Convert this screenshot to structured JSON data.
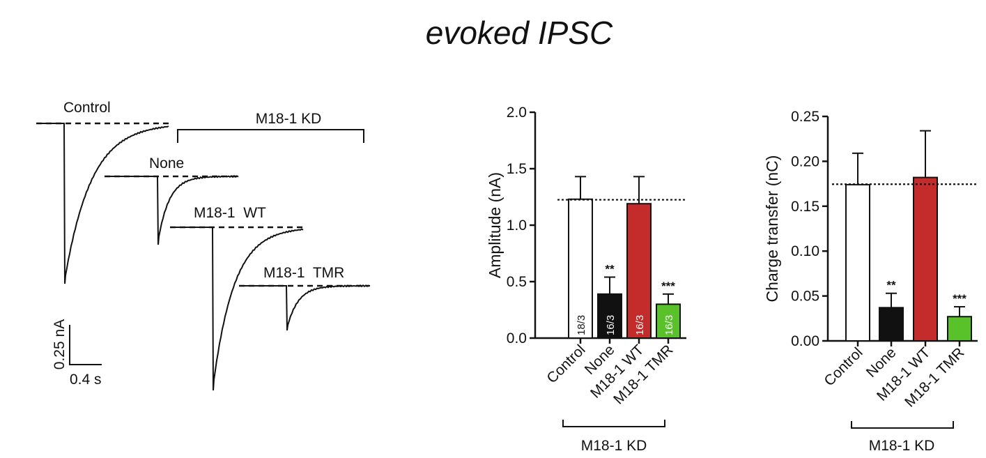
{
  "title": "evoked IPSC",
  "traces": {
    "labels": [
      "Control",
      "None",
      "M18-1  WT",
      "M18-1  TMR"
    ],
    "kd_bracket_label": "M18-1 KD",
    "scalebar": {
      "y_label": "0.25 nA",
      "x_label": "0.4 s"
    }
  },
  "colors": {
    "control": "#ffffff",
    "none": "#111111",
    "wt": "#c42b2b",
    "tmr": "#59c22b",
    "axis": "#111111"
  },
  "chart_data": [
    {
      "type": "bar",
      "categories": [
        "Control",
        "None",
        "M18-1 WT",
        "M18-1 TMR"
      ],
      "values": [
        1.23,
        0.39,
        1.19,
        0.3
      ],
      "errors": [
        0.2,
        0.15,
        0.24,
        0.09
      ],
      "significance": [
        "",
        "**",
        "",
        "***"
      ],
      "n_labels": [
        "18/3",
        "16/3",
        "16/3",
        "16/3"
      ],
      "reference_line": 1.225,
      "ylabel": "Amplitude (nA)",
      "ylim": [
        0,
        2.0
      ],
      "yticks": [
        "0.0",
        "0.5",
        "1.0",
        "1.5",
        "2.0"
      ],
      "group_label": "M18-1 KD"
    },
    {
      "type": "bar",
      "categories": [
        "Control",
        "None",
        "M18-1 WT",
        "M18-1 TMR"
      ],
      "values": [
        0.174,
        0.037,
        0.182,
        0.027
      ],
      "errors": [
        0.035,
        0.016,
        0.052,
        0.011
      ],
      "significance": [
        "",
        "**",
        "",
        "***"
      ],
      "reference_line": 0.1745,
      "ylabel": "Charge transfer (nC)",
      "ylim": [
        0,
        0.25
      ],
      "yticks": [
        "0.00",
        "0.05",
        "0.10",
        "0.15",
        "0.20",
        "0.25"
      ],
      "group_label": "M18-1 KD"
    }
  ]
}
